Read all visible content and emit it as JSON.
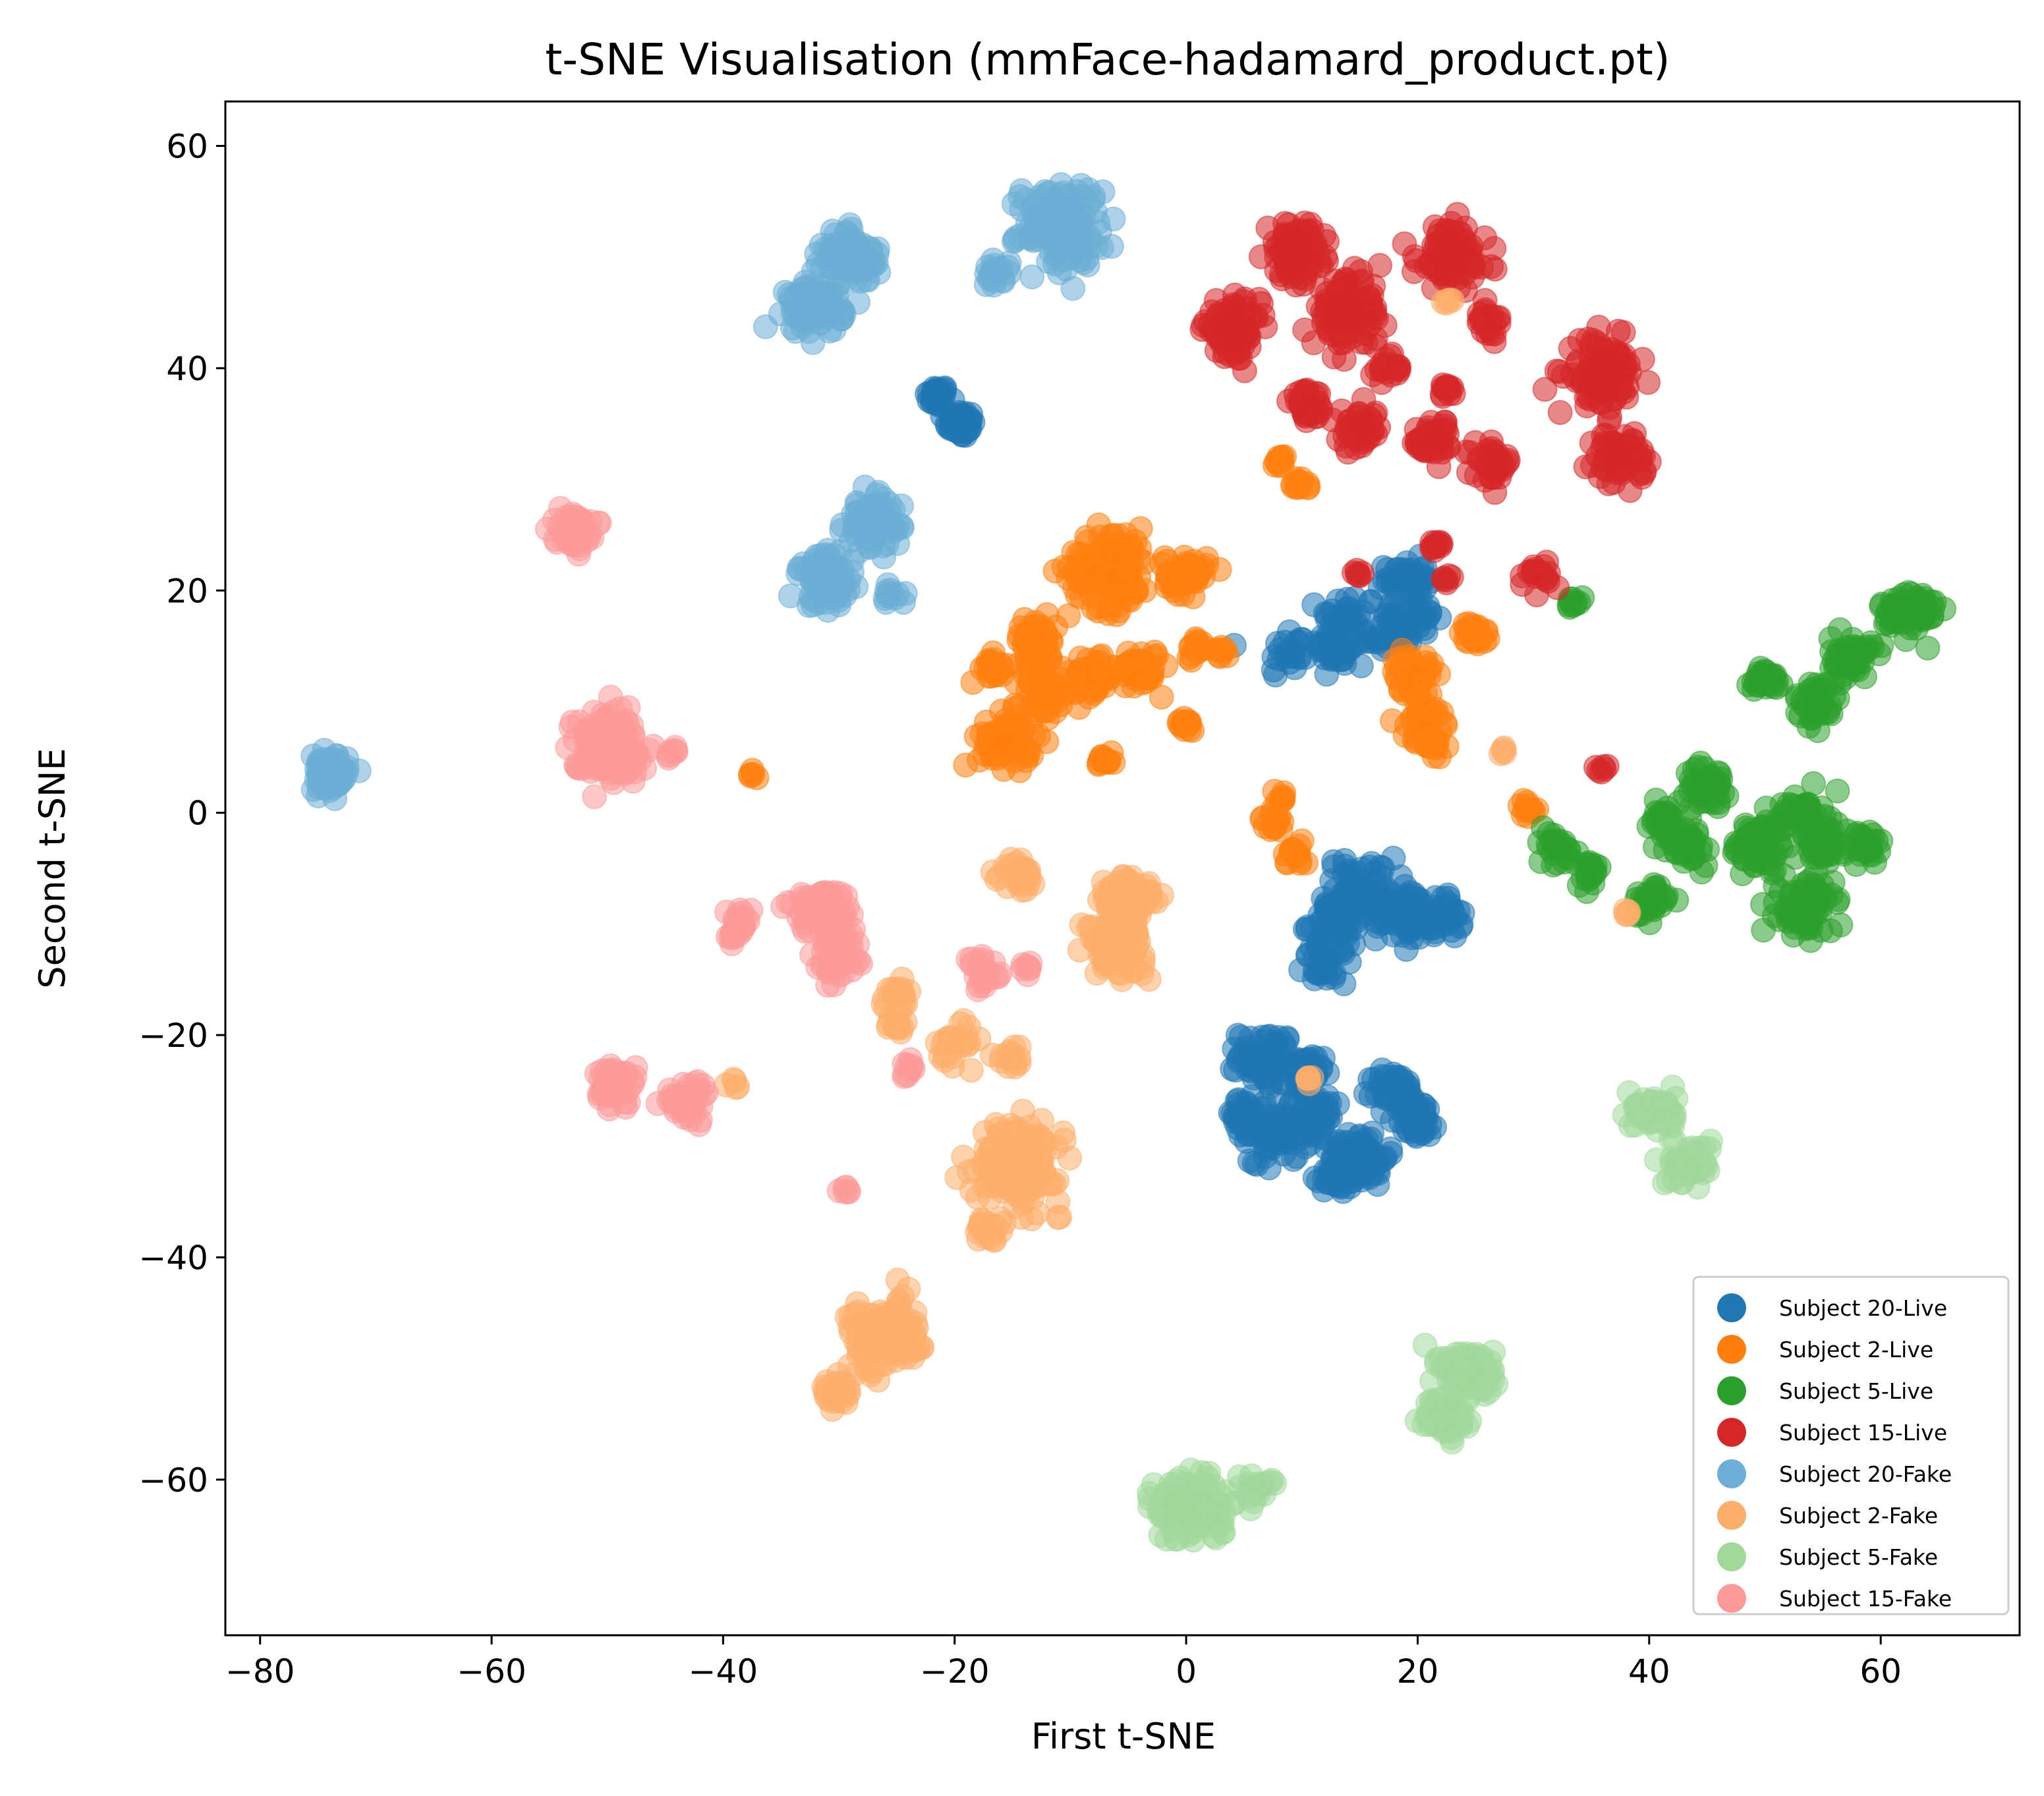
{
  "chart_data": {
    "type": "scatter",
    "title": "t-SNE Visualisation (mmFace-hadamard_product.pt)",
    "xlabel": "First t-SNE",
    "ylabel": "Second t-SNE",
    "xlim": [
      -83,
      72
    ],
    "ylim": [
      -74,
      64
    ],
    "xticks": [
      -80,
      -60,
      -40,
      -20,
      0,
      20,
      40,
      60
    ],
    "yticks": [
      60,
      40,
      20,
      0,
      -20,
      -40,
      -60
    ],
    "grid": false,
    "legend_position": "lower-right",
    "marker_alpha": 0.55,
    "series": [
      {
        "name": "Subject 20-Live",
        "color": "#1f77b4",
        "clusters": [
          [
            -21.5,
            37.5,
            0.8,
            40
          ],
          [
            -19.5,
            35,
            1,
            55
          ],
          [
            9,
            14.5,
            2,
            25
          ],
          [
            13,
            15,
            1.5,
            50
          ],
          [
            14,
            17.5,
            2,
            35
          ],
          [
            17,
            16,
            2,
            30
          ],
          [
            19,
            21,
            1.5,
            45
          ],
          [
            20,
            17.5,
            1.5,
            30
          ],
          [
            15,
            -7,
            2.5,
            70
          ],
          [
            13,
            -10,
            2,
            60
          ],
          [
            12,
            -13.5,
            1.5,
            35
          ],
          [
            19,
            -9,
            2,
            70
          ],
          [
            22,
            -9.5,
            1.5,
            40
          ],
          [
            7,
            -22,
            2,
            80
          ],
          [
            10,
            -23.5,
            1.5,
            40
          ],
          [
            5,
            -27.5,
            1.5,
            35
          ],
          [
            8,
            -29,
            2,
            70
          ],
          [
            11,
            -27,
            2,
            40
          ],
          [
            15,
            -31,
            2,
            100
          ],
          [
            13,
            -33,
            1,
            30
          ],
          [
            18,
            -25,
            1.5,
            55
          ],
          [
            20,
            -27.5,
            1.5,
            45
          ]
        ]
      },
      {
        "name": "Subject 2-Live",
        "color": "#ff7f0e",
        "clusters": [
          [
            -6.5,
            22,
            3,
            140
          ],
          [
            0,
            21.5,
            1.5,
            45
          ],
          [
            -16.5,
            13,
            1,
            20
          ],
          [
            -13,
            15.5,
            1.5,
            45
          ],
          [
            -12,
            11,
            2,
            60
          ],
          [
            -8,
            12.5,
            1.5,
            45
          ],
          [
            -4,
            13,
            1.5,
            50
          ],
          [
            -15.5,
            6.5,
            2,
            75
          ],
          [
            -7,
            4.5,
            0.6,
            15
          ],
          [
            0,
            8,
            0.6,
            15
          ],
          [
            1,
            15,
            0.8,
            15
          ],
          [
            3,
            14.5,
            0.5,
            8
          ],
          [
            8,
            31.5,
            0.5,
            10
          ],
          [
            10,
            29.5,
            0.7,
            12
          ],
          [
            19.5,
            12.5,
            1.5,
            50
          ],
          [
            20.5,
            8.5,
            1.5,
            35
          ],
          [
            21,
            6.5,
            1,
            20
          ],
          [
            25,
            16,
            1,
            25
          ],
          [
            -37.5,
            3.5,
            0.4,
            5
          ],
          [
            8,
            1.5,
            0.5,
            8
          ],
          [
            7.5,
            -1,
            0.8,
            15
          ],
          [
            9.5,
            -3.5,
            1,
            15
          ],
          [
            29.5,
            0.5,
            0.6,
            12
          ]
        ]
      },
      {
        "name": "Subject 5-Live",
        "color": "#2ca02c",
        "clusters": [
          [
            62.5,
            18,
            2,
            75
          ],
          [
            57.5,
            14,
            1.5,
            55
          ],
          [
            50,
            12,
            1,
            30
          ],
          [
            54.5,
            10,
            1.5,
            45
          ],
          [
            33.5,
            19,
            0.5,
            10
          ],
          [
            32,
            -3,
            1.5,
            30
          ],
          [
            35,
            -5.5,
            1,
            20
          ],
          [
            41,
            -1,
            1.5,
            35
          ],
          [
            45,
            2.5,
            1.5,
            45
          ],
          [
            43.5,
            -3,
            1.5,
            35
          ],
          [
            49.5,
            -3,
            2,
            70
          ],
          [
            53,
            0,
            1.5,
            45
          ],
          [
            55,
            -3,
            1.5,
            45
          ],
          [
            58.5,
            -3,
            1.5,
            30
          ],
          [
            53.5,
            -8.5,
            2,
            90
          ],
          [
            40,
            -8,
            1.3,
            35
          ]
        ]
      },
      {
        "name": "Subject 15-Live",
        "color": "#d62728",
        "clusters": [
          [
            9.5,
            50.5,
            2,
            100
          ],
          [
            23,
            50,
            2.5,
            110
          ],
          [
            4,
            43.5,
            2,
            100
          ],
          [
            14,
            45,
            2.5,
            110
          ],
          [
            10.5,
            36.5,
            1.2,
            35
          ],
          [
            15,
            34.5,
            1.5,
            45
          ],
          [
            17.5,
            40,
            1,
            20
          ],
          [
            21.5,
            33.5,
            1.5,
            45
          ],
          [
            26.5,
            31.5,
            1.3,
            40
          ],
          [
            36,
            39.5,
            2.5,
            110
          ],
          [
            37.5,
            32,
            1.8,
            70
          ],
          [
            26,
            44.5,
            1,
            25
          ],
          [
            22.5,
            38,
            0.6,
            12
          ],
          [
            21.5,
            24,
            0.6,
            10
          ],
          [
            22.5,
            21,
            0.4,
            6
          ],
          [
            15,
            21.5,
            0.4,
            6
          ],
          [
            30.5,
            21.5,
            1,
            20
          ],
          [
            36,
            4,
            0.4,
            6
          ]
        ]
      },
      {
        "name": "Subject 20-Fake",
        "color": "#6baed6",
        "clusters": [
          [
            -11,
            53,
            3,
            160
          ],
          [
            -29,
            50,
            2,
            90
          ],
          [
            -32,
            45.5,
            2,
            90
          ],
          [
            -16.5,
            48.5,
            1,
            20
          ],
          [
            -31,
            21,
            2,
            90
          ],
          [
            -27,
            26,
            2,
            80
          ],
          [
            -25.5,
            19.5,
            0.7,
            12
          ],
          [
            -74,
            3.5,
            1.3,
            90
          ]
        ]
      },
      {
        "name": "Subject 2-Fake",
        "color": "#fdae6b",
        "clusters": [
          [
            -14.5,
            -5.5,
            1.2,
            35
          ],
          [
            -5,
            -8,
            2,
            110
          ],
          [
            -6,
            -12,
            2,
            110
          ],
          [
            -25,
            -16.5,
            1,
            20
          ],
          [
            -25,
            -19,
            0.8,
            15
          ],
          [
            -20,
            -20.5,
            1.5,
            25
          ],
          [
            -15,
            -22,
            1,
            15
          ],
          [
            -14.5,
            -31.5,
            3,
            170
          ],
          [
            -17,
            -37.5,
            1,
            20
          ],
          [
            -26,
            -47,
            2.5,
            160
          ],
          [
            -30.5,
            -52,
            1,
            30
          ],
          [
            -39,
            -24.5,
            0.4,
            5
          ],
          [
            22.5,
            46,
            0.4,
            5
          ],
          [
            27.5,
            5.5,
            0.4,
            5
          ],
          [
            38,
            -9,
            0.4,
            5
          ],
          [
            10.5,
            -24,
            0.4,
            5
          ]
        ]
      },
      {
        "name": "Subject 5-Fake",
        "color": "#a1d99b",
        "clusters": [
          [
            40.5,
            -27,
            1.5,
            60
          ],
          [
            43.5,
            -31.5,
            1.5,
            60
          ],
          [
            24.5,
            -50.5,
            2,
            90
          ],
          [
            22.5,
            -54.5,
            1.5,
            60
          ],
          [
            0.5,
            -62.5,
            2.5,
            150
          ],
          [
            6,
            -60.5,
            1,
            20
          ]
        ]
      },
      {
        "name": "Subject 15-Fake",
        "color": "#fb9a99",
        "clusters": [
          [
            -53,
            25.5,
            1.3,
            60
          ],
          [
            -50,
            6,
            2.5,
            150
          ],
          [
            -44.5,
            5.5,
            0.5,
            8
          ],
          [
            -31.5,
            -9,
            2,
            120
          ],
          [
            -30,
            -13,
            1.5,
            40
          ],
          [
            -38.5,
            -9.5,
            0.8,
            15
          ],
          [
            -39,
            -11,
            0.8,
            15
          ],
          [
            -49.5,
            -24.5,
            1.5,
            60
          ],
          [
            -43,
            -26,
            1.5,
            60
          ],
          [
            -17.5,
            -14.5,
            1.3,
            25
          ],
          [
            -13.5,
            -14,
            0.5,
            8
          ],
          [
            -24,
            -23,
            0.7,
            10
          ],
          [
            -29.5,
            -34,
            0.4,
            6
          ]
        ]
      }
    ]
  }
}
